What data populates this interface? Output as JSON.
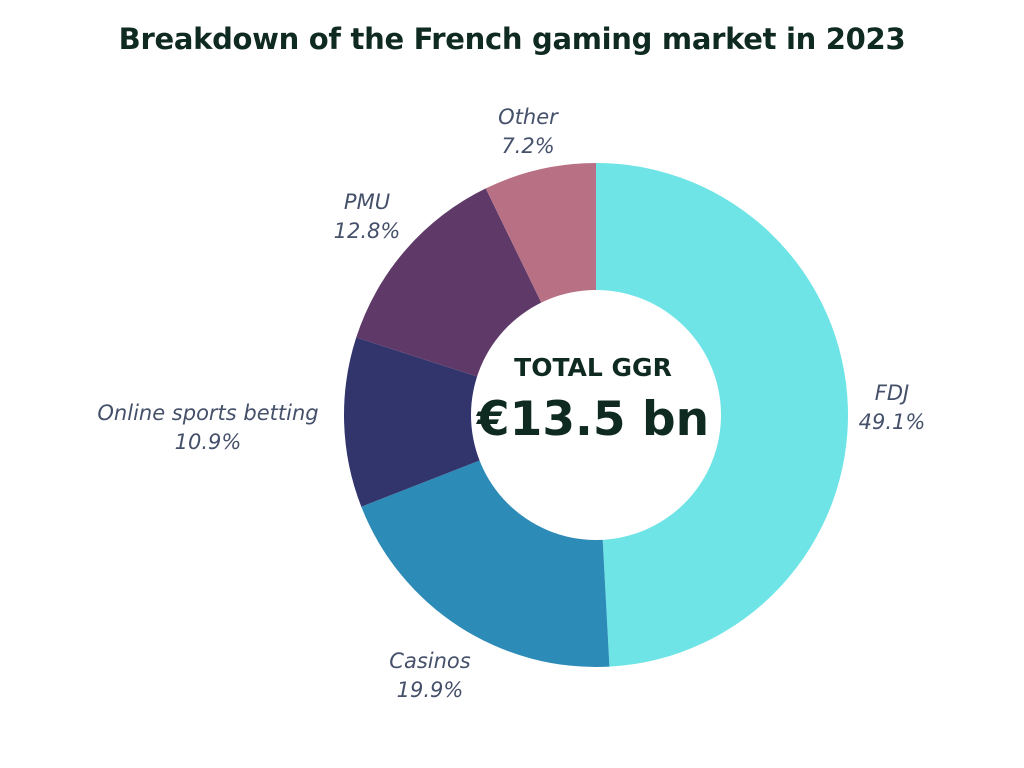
{
  "chart_data": {
    "type": "pie",
    "title": "Breakdown of the French gaming market in 2023",
    "center_label": "TOTAL GGR",
    "center_value": "€13.5 bn",
    "slices": [
      {
        "label": "FDJ",
        "value": 49.1,
        "value_label": "49.1%",
        "color": "#6ee4e6"
      },
      {
        "label": "Casinos",
        "value": 19.9,
        "value_label": "19.9%",
        "color": "#2d8bb7"
      },
      {
        "label": "Online sports betting",
        "value": 10.9,
        "value_label": "10.9%",
        "color": "#31356c"
      },
      {
        "label": "PMU",
        "value": 12.8,
        "value_label": "12.8%",
        "color": "#5f3a69"
      },
      {
        "label": "Other",
        "value": 7.2,
        "value_label": "7.2%",
        "color": "#b87184"
      }
    ]
  }
}
